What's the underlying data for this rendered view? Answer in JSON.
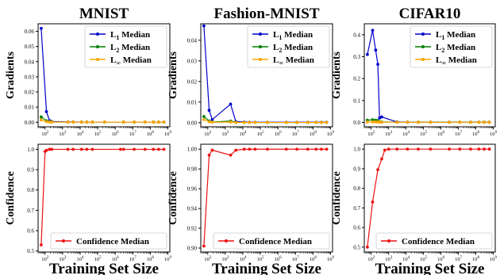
{
  "figure": {
    "xlabel": "Training Set Size",
    "row_ylabels": [
      "Gradients",
      "Confidence"
    ]
  },
  "colors": {
    "l1": "#0000cc",
    "l2": "#008000",
    "linf": "#ffa500",
    "confidence": "#ee1111",
    "axis": "#000000"
  },
  "chart_data": [
    {
      "type": "line",
      "title": "MNIST",
      "ylabel": "Gradients",
      "xscale": "log",
      "xlim": [
        40,
        1300000000.0
      ],
      "ylim": [
        -0.003,
        0.065
      ],
      "yticks": [
        0.0,
        0.01,
        0.02,
        0.03,
        0.04,
        0.05,
        0.06
      ],
      "ytick_labels": [
        "0.00",
        "0.01",
        "0.02",
        "0.03",
        "0.04",
        "0.05",
        "0.06"
      ],
      "xtick_exponents": [
        2,
        3,
        4,
        5,
        6,
        7,
        8,
        9
      ],
      "legend_position": "top-right",
      "x": [
        60,
        120,
        180,
        240,
        2000,
        4000,
        12000,
        24000,
        50000,
        250000,
        3000000,
        12000000,
        50000000,
        150000000,
        300000000,
        600000000
      ],
      "series": [
        {
          "name": "L_1 Median",
          "key": "l1",
          "values": [
            0.062,
            0.007,
            0.001,
            0.0005,
            0.0002,
            0.0002,
            0.0001,
            0.0001,
            0.0001,
            0.0001,
            0.0001,
            0.0001,
            0.0001,
            0.0001,
            0.0001,
            0.0001
          ]
        },
        {
          "name": "L_2 Median",
          "key": "l2",
          "values": [
            0.0035,
            0.001,
            0.0003,
            0.0002,
            0.0001,
            0.0001,
            0.0001,
            0.0001,
            0.0001,
            0.0001,
            0.0001,
            0.0001,
            0.0001,
            0.0001,
            0.0001,
            0.0001
          ]
        },
        {
          "name": "L_∞ Median",
          "key": "linf",
          "values": [
            0.0015,
            0.0004,
            0.0002,
            0.0001,
            0.0001,
            0.0001,
            0.0001,
            0.0001,
            0.0001,
            0.0001,
            0.0001,
            0.0001,
            0.0001,
            0.0001,
            0.0001,
            0.0001
          ]
        }
      ]
    },
    {
      "type": "line",
      "title": "Fashion-MNIST",
      "ylabel": "Gradients",
      "xscale": "log",
      "xlim": [
        40,
        1300000000.0
      ],
      "ylim": [
        -0.002,
        0.048
      ],
      "yticks": [
        0.0,
        0.01,
        0.02,
        0.03,
        0.04
      ],
      "ytick_labels": [
        "0.00",
        "0.01",
        "0.02",
        "0.03",
        "0.04"
      ],
      "xtick_exponents": [
        2,
        3,
        4,
        5,
        6,
        7,
        8,
        9
      ],
      "legend_position": "top-right",
      "x": [
        60,
        120,
        180,
        2000,
        4000,
        12000,
        24000,
        50000,
        250000,
        3000000,
        12000000,
        50000000,
        150000000,
        300000000,
        600000000
      ],
      "series": [
        {
          "name": "L_1 Median",
          "key": "l1",
          "values": [
            0.047,
            0.006,
            0.0015,
            0.009,
            0.0005,
            0.0003,
            0.0002,
            0.0002,
            0.0002,
            0.0002,
            0.0002,
            0.0002,
            0.0002,
            0.0002,
            0.0002
          ]
        },
        {
          "name": "L_2 Median",
          "key": "l2",
          "values": [
            0.003,
            0.0008,
            0.0003,
            0.0008,
            0.0002,
            0.0001,
            0.0001,
            0.0001,
            0.0001,
            0.0001,
            0.0001,
            0.0001,
            0.0001,
            0.0001,
            0.0001
          ]
        },
        {
          "name": "L_∞ Median",
          "key": "linf",
          "values": [
            0.0015,
            0.0004,
            0.0002,
            0.0003,
            0.0001,
            0.0001,
            0.0001,
            0.0001,
            0.0001,
            0.0001,
            0.0001,
            0.0001,
            0.0001,
            0.0001,
            0.0001
          ]
        }
      ]
    },
    {
      "type": "line",
      "title": "CIFAR10",
      "ylabel": "Gradients",
      "xscale": "log",
      "xlim": [
        40,
        1300000000.0
      ],
      "ylim": [
        -0.02,
        0.45
      ],
      "yticks": [
        0.0,
        0.1,
        0.2,
        0.3,
        0.4
      ],
      "ytick_labels": [
        "0.0",
        "0.1",
        "0.2",
        "0.3",
        "0.4"
      ],
      "xtick_exponents": [
        2,
        3,
        4,
        5,
        6,
        7,
        8,
        9
      ],
      "legend_position": "top-right",
      "x": [
        60,
        120,
        180,
        240,
        300,
        400,
        3000,
        12000,
        50000,
        250000,
        3000000,
        12000000,
        50000000,
        150000000,
        300000000,
        600000000
      ],
      "series": [
        {
          "name": "L_1 Median",
          "key": "l1",
          "values": [
            0.31,
            0.42,
            0.33,
            0.265,
            0.02,
            0.025,
            0.002,
            0.001,
            0.001,
            0.001,
            0.001,
            0.001,
            0.001,
            0.001,
            0.001,
            0.001
          ]
        },
        {
          "name": "L_2 Median",
          "key": "l2",
          "values": [
            0.01,
            0.012,
            0.01,
            0.008,
            0.003,
            0.002,
            0.001,
            0.001,
            0.001,
            0.001,
            0.001,
            0.001,
            0.001,
            0.001,
            0.001,
            0.001
          ]
        },
        {
          "name": "L_∞ Median",
          "key": "linf",
          "values": [
            0.002,
            0.002,
            0.002,
            0.002,
            0.001,
            0.001,
            0.0005,
            0.0005,
            0.0005,
            0.0005,
            0.0005,
            0.0005,
            0.0005,
            0.0005,
            0.0005,
            0.0005
          ]
        }
      ]
    },
    {
      "type": "line",
      "title": "",
      "ylabel": "Confidence",
      "xlabel": "Training Set Size",
      "xscale": "log",
      "xlim": [
        40,
        1300000000.0
      ],
      "ylim": [
        0.495,
        1.025
      ],
      "yticks": [
        0.5,
        0.6,
        0.7,
        0.8,
        0.9,
        1.0
      ],
      "ytick_labels": [
        "0.5",
        "0.6",
        "0.7",
        "0.8",
        "0.9",
        "1.0"
      ],
      "xtick_exponents": [
        2,
        3,
        4,
        5,
        6,
        7,
        8,
        9
      ],
      "legend_position": "bottom-right",
      "x": [
        60,
        100,
        120,
        180,
        240,
        2000,
        4000,
        12000,
        24000,
        50000,
        2000000,
        3000000,
        12000000,
        50000000,
        150000000,
        300000000,
        600000000
      ],
      "series": [
        {
          "name": "Confidence Median",
          "key": "confidence",
          "values": [
            0.53,
            0.99,
            0.995,
            1.0,
            1.0,
            1.0,
            1.0,
            1.0,
            1.0,
            1.0,
            1.0,
            1.0,
            1.0,
            1.0,
            1.0,
            1.0,
            1.0
          ]
        }
      ]
    },
    {
      "type": "line",
      "title": "",
      "ylabel": "Confidence",
      "xlabel": "Training Set Size",
      "xscale": "log",
      "xlim": [
        40,
        1300000000.0
      ],
      "ylim": [
        0.896,
        1.005
      ],
      "yticks": [
        0.9,
        0.92,
        0.94,
        0.96,
        0.98,
        1.0
      ],
      "ytick_labels": [
        "0.90",
        "0.92",
        "0.94",
        "0.96",
        "0.98",
        "1.00"
      ],
      "xtick_exponents": [
        2,
        3,
        4,
        5,
        6,
        7,
        8,
        9
      ],
      "legend_position": "bottom-right",
      "x": [
        60,
        120,
        180,
        2000,
        4000,
        12000,
        24000,
        50000,
        250000,
        3000000,
        12000000,
        50000000,
        150000000,
        300000000,
        600000000
      ],
      "series": [
        {
          "name": "Confidence Median",
          "key": "confidence",
          "values": [
            0.902,
            0.994,
            0.999,
            0.994,
            0.999,
            1.0,
            1.0,
            1.0,
            1.0,
            1.0,
            1.0,
            1.0,
            1.0,
            1.0,
            1.0
          ]
        }
      ]
    },
    {
      "type": "line",
      "title": "",
      "ylabel": "Confidence",
      "xlabel": "Training Set Size",
      "xscale": "log",
      "xlim": [
        40,
        1300000000.0
      ],
      "ylim": [
        0.475,
        1.025
      ],
      "yticks": [
        0.5,
        0.6,
        0.7,
        0.8,
        0.9,
        1.0
      ],
      "ytick_labels": [
        "0.5",
        "0.6",
        "0.7",
        "0.8",
        "0.9",
        "1.0"
      ],
      "xtick_exponents": [
        2,
        3,
        4,
        5,
        6,
        7,
        8,
        9
      ],
      "legend_position": "bottom-right",
      "x": [
        60,
        120,
        240,
        400,
        600,
        1000,
        3000,
        12000,
        50000,
        250000,
        3000000,
        12000000,
        50000000,
        150000000,
        300000000,
        600000000
      ],
      "series": [
        {
          "name": "Confidence Median",
          "key": "confidence",
          "values": [
            0.5,
            0.73,
            0.895,
            0.95,
            0.995,
            1.0,
            1.0,
            1.0,
            1.0,
            1.0,
            1.0,
            1.0,
            1.0,
            1.0,
            1.0,
            1.0
          ]
        }
      ]
    }
  ]
}
